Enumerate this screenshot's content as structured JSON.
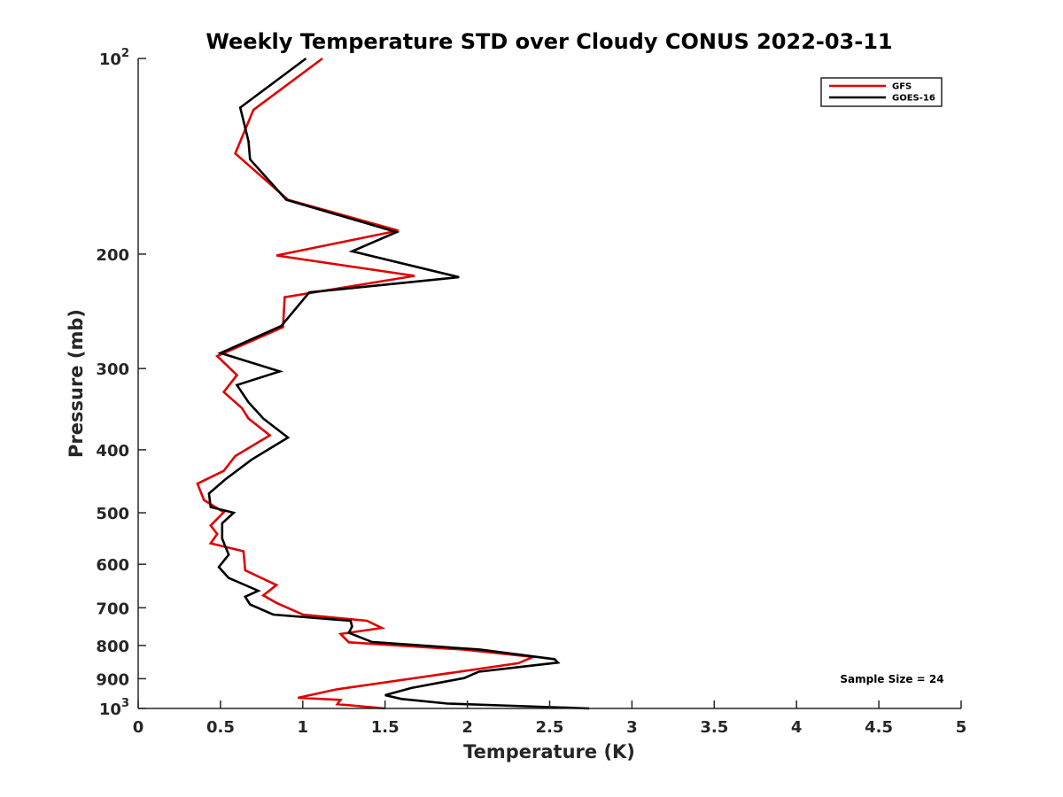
{
  "chart_data": {
    "type": "line",
    "title": "Weekly Temperature STD over Cloudy CONUS 2022-03-11",
    "xlabel": "Temperature (K)",
    "ylabel": "Pressure (mb)",
    "xlim": [
      0,
      5
    ],
    "ylim": [
      100,
      1000
    ],
    "y_scale": "log",
    "y_reversed": true,
    "x_ticks": [
      0,
      0.5,
      1,
      1.5,
      2,
      2.5,
      3,
      3.5,
      4,
      4.5,
      5
    ],
    "x_tick_labels": [
      "0",
      "0.5",
      "1",
      "1.5",
      "2",
      "2.5",
      "3",
      "3.5",
      "4",
      "4.5",
      "5"
    ],
    "y_ticks": [
      100,
      200,
      300,
      400,
      500,
      600,
      700,
      800,
      900,
      1000
    ],
    "y_tick_labels": [
      {
        "base": "10",
        "exp": "2"
      },
      {
        "base": "200",
        "exp": ""
      },
      {
        "base": "300",
        "exp": ""
      },
      {
        "base": "400",
        "exp": ""
      },
      {
        "base": "500",
        "exp": ""
      },
      {
        "base": "600",
        "exp": ""
      },
      {
        "base": "700",
        "exp": ""
      },
      {
        "base": "800",
        "exp": ""
      },
      {
        "base": "900",
        "exp": ""
      },
      {
        "base": "10",
        "exp": "3"
      }
    ],
    "grid": false,
    "legend_position": "top-right",
    "annotation": "Sample Size = 24",
    "series": [
      {
        "name": "GFS",
        "color": "#e00000",
        "points": [
          [
            1.12,
            100
          ],
          [
            0.7,
            120
          ],
          [
            0.59,
            140
          ],
          [
            0.91,
            165
          ],
          [
            1.58,
            184
          ],
          [
            0.84,
            201
          ],
          [
            1.68,
            216
          ],
          [
            0.89,
            233
          ],
          [
            0.88,
            259
          ],
          [
            0.48,
            287
          ],
          [
            0.6,
            307
          ],
          [
            0.52,
            326
          ],
          [
            0.63,
            345
          ],
          [
            0.67,
            358
          ],
          [
            0.8,
            380
          ],
          [
            0.59,
            409
          ],
          [
            0.52,
            431
          ],
          [
            0.36,
            451
          ],
          [
            0.4,
            478
          ],
          [
            0.52,
            499
          ],
          [
            0.44,
            523
          ],
          [
            0.48,
            539
          ],
          [
            0.44,
            557
          ],
          [
            0.64,
            573
          ],
          [
            0.65,
            613
          ],
          [
            0.84,
            646
          ],
          [
            0.76,
            670
          ],
          [
            0.84,
            688
          ],
          [
            1.0,
            717
          ],
          [
            1.39,
            733
          ],
          [
            1.48,
            752
          ],
          [
            1.23,
            768
          ],
          [
            1.28,
            791
          ],
          [
            1.98,
            812
          ],
          [
            2.4,
            833
          ],
          [
            2.31,
            852
          ],
          [
            1.2,
            935
          ],
          [
            0.97,
            963
          ],
          [
            1.23,
            970
          ],
          [
            1.21,
            985
          ],
          [
            1.5,
            1000
          ]
        ]
      },
      {
        "name": "GOES-16",
        "color": "#000000",
        "points": [
          [
            1.02,
            100
          ],
          [
            0.62,
            119
          ],
          [
            0.67,
            134
          ],
          [
            0.68,
            143
          ],
          [
            0.9,
            165
          ],
          [
            1.57,
            185
          ],
          [
            1.3,
            198
          ],
          [
            1.95,
            217
          ],
          [
            1.04,
            229
          ],
          [
            0.87,
            258
          ],
          [
            0.5,
            284
          ],
          [
            0.86,
            303
          ],
          [
            0.6,
            318
          ],
          [
            0.67,
            338
          ],
          [
            0.76,
            358
          ],
          [
            0.91,
            383
          ],
          [
            0.69,
            414
          ],
          [
            0.53,
            444
          ],
          [
            0.43,
            467
          ],
          [
            0.44,
            490
          ],
          [
            0.58,
            500
          ],
          [
            0.51,
            519
          ],
          [
            0.51,
            548
          ],
          [
            0.55,
            580
          ],
          [
            0.49,
            606
          ],
          [
            0.55,
            630
          ],
          [
            0.73,
            659
          ],
          [
            0.65,
            673
          ],
          [
            0.68,
            692
          ],
          [
            0.82,
            717
          ],
          [
            1.29,
            733
          ],
          [
            1.3,
            748
          ],
          [
            1.28,
            765
          ],
          [
            1.42,
            790
          ],
          [
            2.08,
            812
          ],
          [
            2.53,
            840
          ],
          [
            2.55,
            850
          ],
          [
            2.07,
            878
          ],
          [
            1.98,
            898
          ],
          [
            1.66,
            930
          ],
          [
            1.5,
            954
          ],
          [
            1.6,
            967
          ],
          [
            1.88,
            983
          ],
          [
            2.74,
            1000
          ]
        ]
      }
    ]
  }
}
